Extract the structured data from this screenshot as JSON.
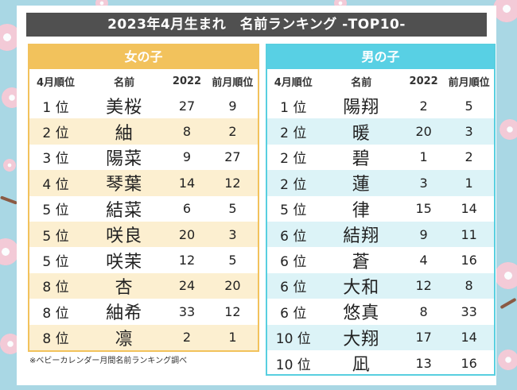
{
  "title": "2023年4月生まれ　名前ランキング -TOP10-",
  "headers": [
    "4月順位",
    "名前",
    "2022",
    "前月順位"
  ],
  "girls": {
    "label": "女の子",
    "rows": [
      {
        "rank": "1 位",
        "name": "美桜",
        "y2022": "27",
        "prev": "9"
      },
      {
        "rank": "2 位",
        "name": "紬",
        "y2022": "8",
        "prev": "2"
      },
      {
        "rank": "3 位",
        "name": "陽菜",
        "y2022": "9",
        "prev": "27"
      },
      {
        "rank": "4 位",
        "name": "琴葉",
        "y2022": "14",
        "prev": "12"
      },
      {
        "rank": "5 位",
        "name": "結菜",
        "y2022": "6",
        "prev": "5"
      },
      {
        "rank": "5 位",
        "name": "咲良",
        "y2022": "20",
        "prev": "3"
      },
      {
        "rank": "5 位",
        "name": "咲茉",
        "y2022": "12",
        "prev": "5"
      },
      {
        "rank": "8 位",
        "name": "杏",
        "y2022": "24",
        "prev": "20"
      },
      {
        "rank": "8 位",
        "name": "紬希",
        "y2022": "33",
        "prev": "12"
      },
      {
        "rank": "8 位",
        "name": "凛",
        "y2022": "2",
        "prev": "1"
      }
    ]
  },
  "boys": {
    "label": "男の子",
    "rows": [
      {
        "rank": "1 位",
        "name": "陽翔",
        "y2022": "2",
        "prev": "5"
      },
      {
        "rank": "2 位",
        "name": "暖",
        "y2022": "20",
        "prev": "3"
      },
      {
        "rank": "2 位",
        "name": "碧",
        "y2022": "1",
        "prev": "2"
      },
      {
        "rank": "2 位",
        "name": "蓮",
        "y2022": "3",
        "prev": "1"
      },
      {
        "rank": "5 位",
        "name": "律",
        "y2022": "15",
        "prev": "14"
      },
      {
        "rank": "6 位",
        "name": "結翔",
        "y2022": "9",
        "prev": "11"
      },
      {
        "rank": "6 位",
        "name": "蒼",
        "y2022": "4",
        "prev": "16"
      },
      {
        "rank": "6 位",
        "name": "大和",
        "y2022": "12",
        "prev": "8"
      },
      {
        "rank": "6 位",
        "name": "悠真",
        "y2022": "8",
        "prev": "33"
      },
      {
        "rank": "10 位",
        "name": "大翔",
        "y2022": "17",
        "prev": "14"
      },
      {
        "rank": "10 位",
        "name": "凪",
        "y2022": "13",
        "prev": "16"
      }
    ]
  },
  "footnote": "※ベビーカレンダー月間名前ランキング調べ",
  "colors": {
    "girls_accent": "#f2c25c",
    "boys_accent": "#58d0e4",
    "title_bg": "#505050",
    "background": "#a9d7e4"
  }
}
